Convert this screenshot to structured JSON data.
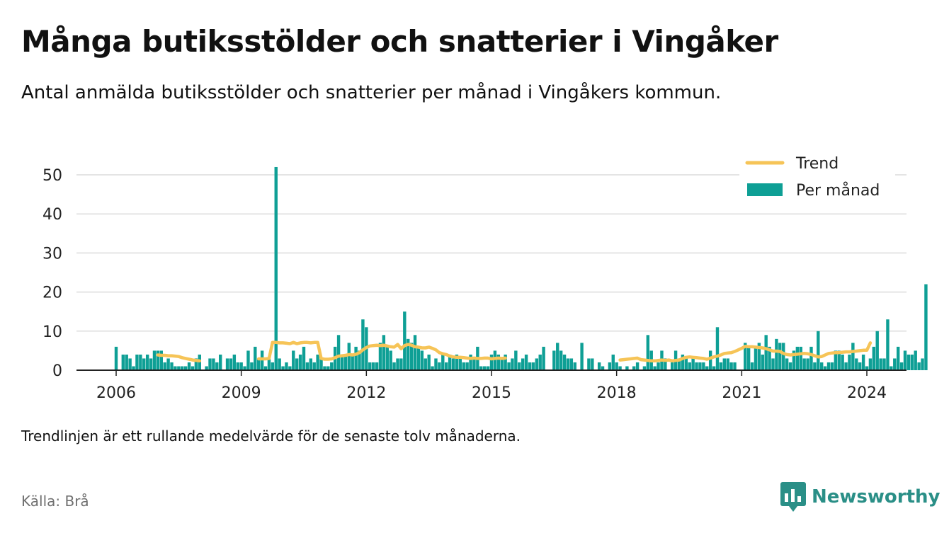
{
  "title": "Många butiksstölder och snatterier i Vingåker",
  "subtitle": "Antal anmälda butiksstölder och snatterier per månad i Vingåkers kommun.",
  "note": "Trendlinjen är ett rullande medelvärde för de senaste tolv månaderna.",
  "source": "Källa: Brå",
  "brand": {
    "name": "Newsworthy",
    "icon": "newsworthy-logo-icon"
  },
  "colors": {
    "bar": "#0e9f95",
    "trend": "#f6c457",
    "grid": "#dcdcdc",
    "axis": "#222222",
    "brand": "#2a8f87"
  },
  "chart_data": {
    "type": "bar",
    "x_axis": {
      "ticks": [
        "2006",
        "2009",
        "2012",
        "2015",
        "2018",
        "2021",
        "2024"
      ],
      "range": [
        "2006-01",
        "2024-01"
      ]
    },
    "y_axis": {
      "ticks": [
        0,
        10,
        20,
        30,
        40,
        50
      ],
      "range": [
        0,
        52
      ]
    },
    "grid": true,
    "legend": {
      "placement": "top-right",
      "items": [
        {
          "label": "Trend",
          "kind": "line"
        },
        {
          "label": "Per månad",
          "kind": "bar"
        }
      ]
    },
    "series": [
      {
        "name": "Per månad",
        "type": "bar",
        "start": "2006-01",
        "values": [
          6,
          null,
          4,
          4,
          3,
          1,
          4,
          4,
          3,
          4,
          3,
          5,
          5,
          5,
          2,
          3,
          2,
          1,
          1,
          1,
          1,
          2,
          1,
          3,
          4,
          0,
          1,
          3,
          3,
          2,
          4,
          0,
          3,
          3,
          4,
          2,
          2,
          1,
          5,
          2,
          6,
          3,
          5,
          1,
          3,
          2,
          52,
          3,
          1,
          2,
          1,
          5,
          3,
          4,
          6,
          2,
          3,
          2,
          4,
          3,
          1,
          1,
          2,
          6,
          9,
          4,
          4,
          7,
          4,
          6,
          5,
          13,
          11,
          2,
          2,
          2,
          7,
          9,
          6,
          5,
          2,
          3,
          3,
          15,
          8,
          7,
          9,
          6,
          5,
          3,
          4,
          1,
          3,
          2,
          4,
          2,
          4,
          3,
          4,
          3,
          2,
          2,
          4,
          3,
          6,
          1,
          1,
          1,
          4,
          5,
          4,
          3,
          4,
          2,
          3,
          5,
          2,
          3,
          4,
          2,
          2,
          3,
          4,
          6,
          0,
          0,
          5,
          7,
          5,
          4,
          3,
          3,
          2,
          0,
          7,
          0,
          3,
          3,
          0,
          2,
          1,
          0,
          2,
          4,
          2,
          1,
          0,
          1,
          0,
          1,
          2,
          0,
          1,
          9,
          5,
          1,
          2,
          5,
          3,
          0,
          2,
          5,
          3,
          4,
          3,
          2,
          3,
          2,
          2,
          2,
          1,
          5,
          1,
          11,
          2,
          3,
          3,
          2,
          2,
          0,
          0,
          7,
          6,
          2,
          6,
          7,
          4,
          9,
          6,
          3,
          8,
          7,
          7,
          3,
          2,
          5,
          6,
          6,
          3,
          3,
          6,
          2,
          10,
          2,
          1,
          2,
          2,
          5,
          5,
          4,
          2,
          4,
          7,
          3,
          2,
          4,
          1,
          3,
          6,
          10,
          3,
          3,
          13,
          1,
          3,
          6,
          2,
          5,
          4,
          4,
          5,
          2,
          3,
          22
        ]
      },
      {
        "name": "Trend",
        "type": "line",
        "segments": [
          {
            "start": "2007-01",
            "values": [
              3.9,
              3.8,
              3.8,
              3.7,
              3.7,
              3.6,
              3.5,
              3.2,
              3.0,
              2.8,
              2.6,
              2.5,
              2.4
            ]
          },
          {
            "start": "2009-06",
            "values": [
              2.9,
              2.9,
              2.9,
              3.0,
              7.1,
              7.1,
              7.0,
              7.0,
              6.9,
              6.8,
              7.1,
              6.8,
              7.0,
              7.1,
              7.1,
              7.0,
              7.1,
              7.1,
              3.0,
              2.8,
              2.8,
              2.9,
              3.2,
              3.6,
              3.7,
              3.8,
              4.0,
              3.9,
              4.1,
              4.5,
              5.2,
              5.8,
              6.2,
              6.3,
              6.4,
              6.3,
              6.4,
              6.2,
              6.0,
              5.9,
              6.6,
              5.5,
              6.3,
              6.6,
              6.4,
              6.0,
              5.9,
              5.7,
              5.7,
              5.9,
              5.6,
              5.2,
              4.5,
              4.2,
              4.0,
              3.6,
              3.4,
              3.3,
              3.3,
              3.2,
              3.1,
              3.0,
              3.1,
              3.0,
              3.0,
              3.1,
              3.1,
              2.9,
              3.0,
              3.1,
              3.0,
              3.1
            ]
          }
        ]
      },
      {
        "name": "Trend",
        "type": "line",
        "segments": [
          {
            "start": "2018-02",
            "values": [
              2.6,
              2.7,
              2.8,
              2.9,
              3.0,
              3.1,
              2.7,
              2.6,
              2.5,
              2.4,
              2.4,
              2.5,
              2.6,
              2.5,
              2.6,
              2.4,
              2.5,
              2.6,
              3.0,
              3.3,
              3.4,
              3.3,
              3.2,
              3.1,
              3.0,
              2.8,
              3.1,
              3.4,
              3.6,
              3.9,
              4.3,
              4.4,
              4.5,
              4.8,
              5.2,
              5.6,
              6.1,
              6.0,
              6.0,
              5.9,
              5.8,
              5.7,
              5.5,
              5.2,
              4.9,
              4.9,
              4.8,
              4.3,
              4.0,
              3.9,
              4.0,
              4.1,
              4.2,
              4.3,
              4.2,
              4.0,
              3.7,
              3.4,
              3.5,
              3.9,
              4.3,
              4.4,
              4.5,
              4.5,
              4.6,
              4.7,
              4.7,
              4.8,
              4.9,
              5.0,
              5.1,
              5.1,
              7.0
            ]
          }
        ]
      }
    ]
  }
}
